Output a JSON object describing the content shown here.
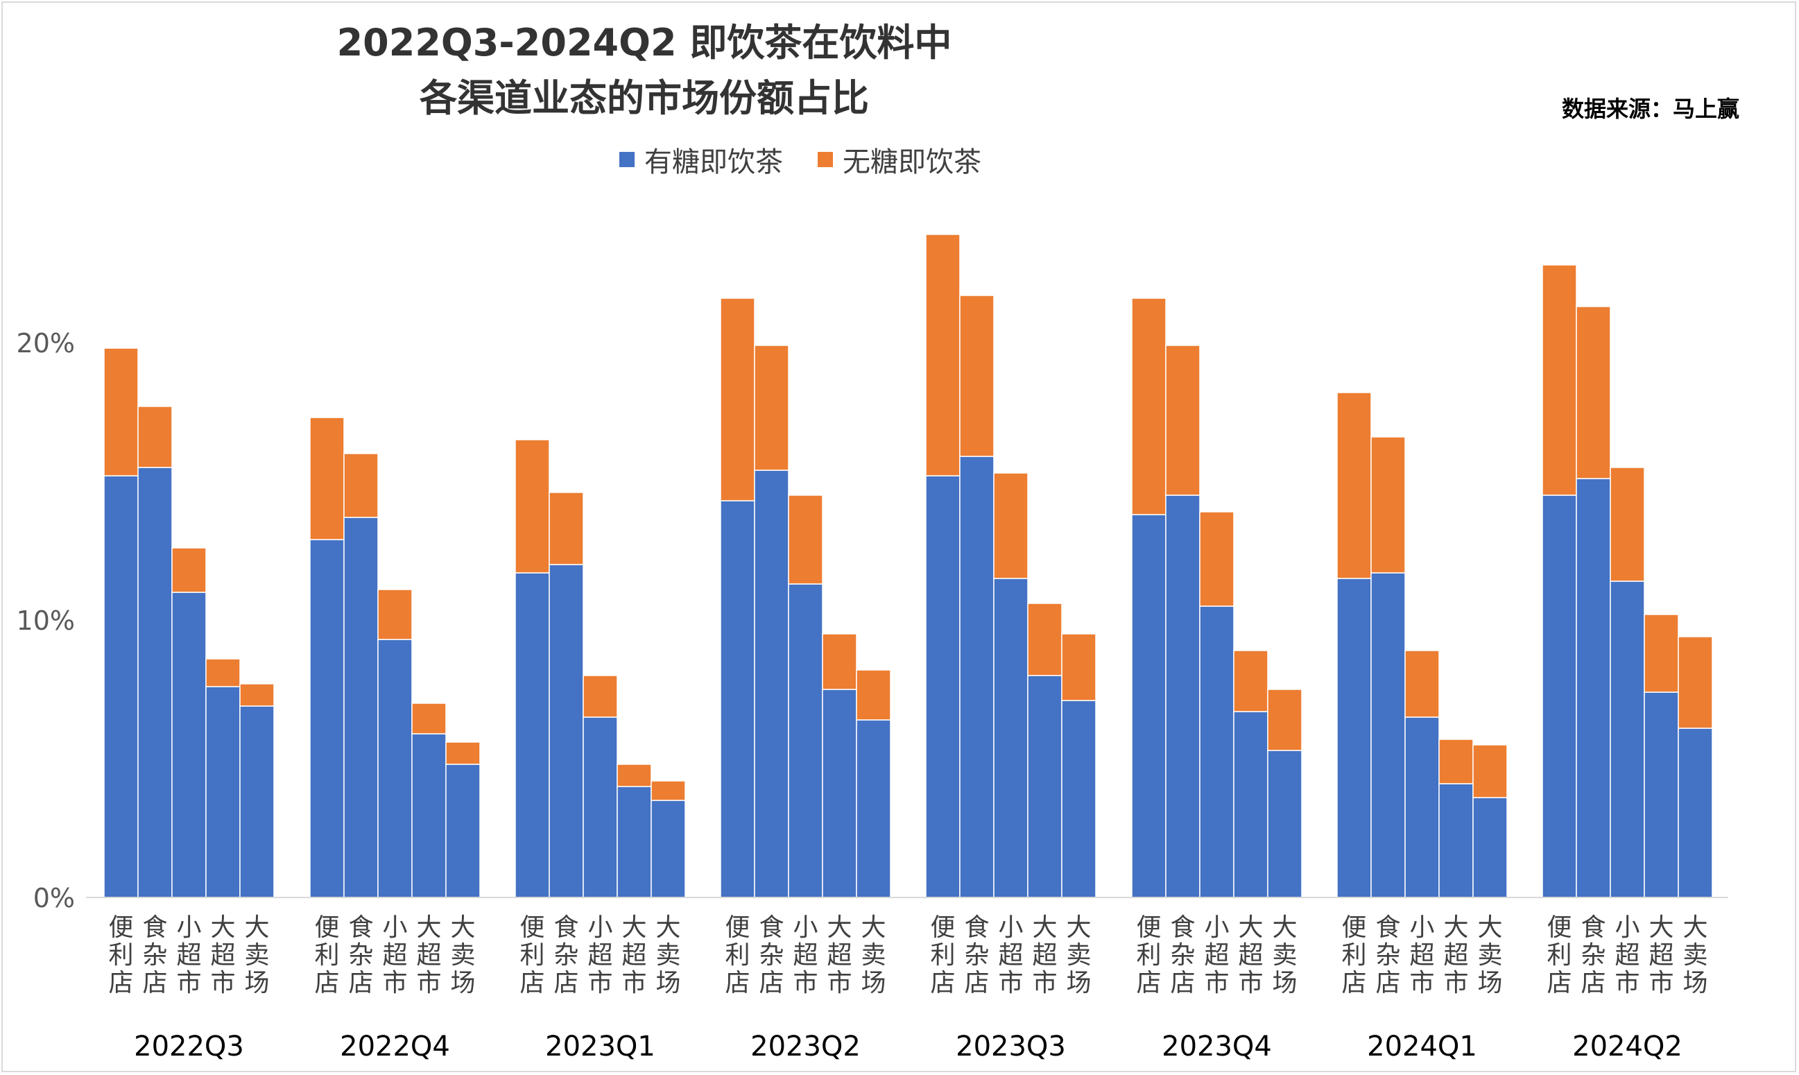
{
  "title_lines": [
    "2022Q3-2024Q2 即饮茶在饮料中",
    "各渠道业态的市场份额占比"
  ],
  "source_note": "数据来源：马上赢",
  "legend": [
    {
      "label": "有糖即饮茶",
      "color": "#4472C4"
    },
    {
      "label": "无糖即饮茶",
      "color": "#ED7D31"
    }
  ],
  "chart_data": {
    "type": "bar",
    "stacked": true,
    "title": "2022Q3-2024Q2 即饮茶在饮料中各渠道业态的市场份额占比",
    "y_unit": "%",
    "ylim": [
      0,
      25
    ],
    "y_ticks": [
      0,
      10,
      20
    ],
    "y_tick_labels": [
      "0%",
      "10%",
      "20%"
    ],
    "grid": false,
    "legend_position": "top",
    "channels": [
      "便利店",
      "食杂店",
      "小超市",
      "大超市",
      "大卖场"
    ],
    "groups": [
      {
        "label": "2022Q3",
        "sugar": [
          15.2,
          15.5,
          11.0,
          7.6,
          6.9
        ],
        "sugar_free": [
          4.6,
          2.2,
          1.6,
          1.0,
          0.8
        ]
      },
      {
        "label": "2022Q4",
        "sugar": [
          12.9,
          13.7,
          9.3,
          5.9,
          4.8
        ],
        "sugar_free": [
          4.4,
          2.3,
          1.8,
          1.1,
          0.8
        ]
      },
      {
        "label": "2023Q1",
        "sugar": [
          11.7,
          12.0,
          6.5,
          4.0,
          3.5
        ],
        "sugar_free": [
          4.8,
          2.6,
          1.5,
          0.8,
          0.7
        ]
      },
      {
        "label": "2023Q2",
        "sugar": [
          14.3,
          15.4,
          11.3,
          7.5,
          6.4
        ],
        "sugar_free": [
          7.3,
          4.5,
          3.2,
          2.0,
          1.8
        ]
      },
      {
        "label": "2023Q3",
        "sugar": [
          15.2,
          15.9,
          11.5,
          8.0,
          7.1
        ],
        "sugar_free": [
          8.7,
          5.8,
          3.8,
          2.6,
          2.4
        ]
      },
      {
        "label": "2023Q4",
        "sugar": [
          13.8,
          14.5,
          10.5,
          6.7,
          5.3
        ],
        "sugar_free": [
          7.8,
          5.4,
          3.4,
          2.2,
          2.2
        ]
      },
      {
        "label": "2024Q1",
        "sugar": [
          11.5,
          11.7,
          6.5,
          4.1,
          3.6
        ],
        "sugar_free": [
          6.7,
          4.9,
          2.4,
          1.6,
          1.9
        ]
      },
      {
        "label": "2024Q2",
        "sugar": [
          14.5,
          15.1,
          11.4,
          7.4,
          6.1
        ],
        "sugar_free": [
          8.3,
          6.2,
          4.1,
          2.8,
          3.3
        ]
      }
    ],
    "series": [
      {
        "name": "有糖即饮茶",
        "color": "#4472C4"
      },
      {
        "name": "无糖即饮茶",
        "color": "#ED7D31"
      }
    ]
  }
}
